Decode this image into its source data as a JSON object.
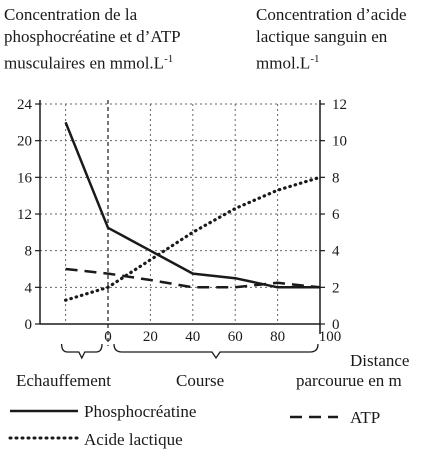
{
  "titles": {
    "left": [
      "Concentration de la",
      "phosphocréatine et d’ATP",
      "musculaires en mmol.L",
      "-1"
    ],
    "right": [
      "Concentration d’acide",
      "lactique sanguin en",
      "mmol.L",
      "-1"
    ]
  },
  "phases": {
    "warmup": "Echauffement",
    "race": "Course"
  },
  "xlabel": [
    "Distance",
    "parcourue en m"
  ],
  "legend": {
    "pcr": "Phosphocréatine",
    "lactate": "Acide lactique",
    "atp": "ATP"
  },
  "chart_data": {
    "type": "line",
    "x_ticks": [
      0,
      20,
      40,
      60,
      80,
      100
    ],
    "x_range": [
      -20,
      100
    ],
    "y_left_ticks": [
      0,
      4,
      8,
      12,
      16,
      20,
      24
    ],
    "y_left_range": [
      0,
      24
    ],
    "y_right_ticks": [
      0,
      2,
      4,
      6,
      8,
      10,
      12
    ],
    "y_right_range": [
      0,
      12
    ],
    "grid": true,
    "series": [
      {
        "name": "Phosphocréatine",
        "axis": "left",
        "style": "solid",
        "x": [
          -20,
          0,
          20,
          40,
          60,
          80,
          100
        ],
        "y": [
          22,
          10.5,
          8,
          5.5,
          5,
          4,
          4
        ]
      },
      {
        "name": "ATP",
        "axis": "left",
        "style": "dashed",
        "x": [
          -20,
          0,
          20,
          40,
          60,
          80,
          100
        ],
        "y": [
          6,
          5.5,
          4.8,
          4,
          4,
          4.5,
          4
        ]
      },
      {
        "name": "Acide lactique",
        "axis": "right",
        "style": "dotted",
        "x": [
          -20,
          0,
          20,
          40,
          60,
          80,
          100
        ],
        "y": [
          1.3,
          2,
          3.5,
          5,
          6.3,
          7.3,
          8
        ]
      }
    ]
  }
}
